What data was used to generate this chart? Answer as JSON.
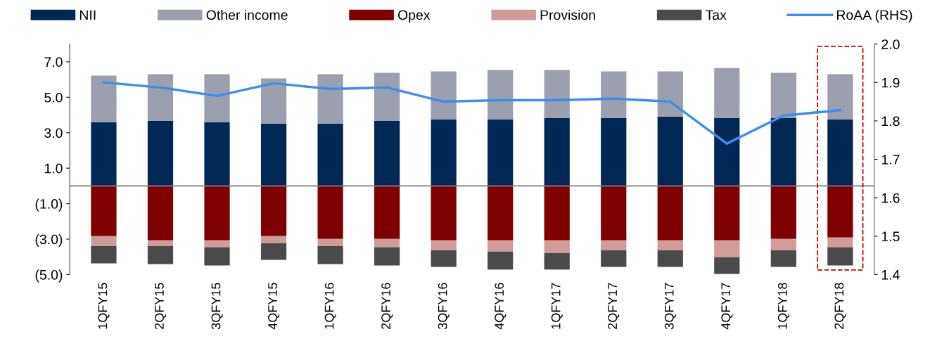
{
  "chart_data": {
    "type": "bar",
    "stacked": true,
    "categories": [
      "1QFY15",
      "2QFY15",
      "3QFY15",
      "4QFY15",
      "1QFY16",
      "2QFY16",
      "3QFY16",
      "4QFY16",
      "1QFY17",
      "2QFY17",
      "3QFY17",
      "4QFY17",
      "1QFY18",
      "2QFY18"
    ],
    "series": [
      {
        "name": "NII",
        "color": "#002855",
        "values": [
          3.58,
          3.66,
          3.58,
          3.5,
          3.5,
          3.66,
          3.74,
          3.74,
          3.82,
          3.82,
          3.9,
          3.82,
          3.82,
          3.74
        ]
      },
      {
        "name": "Other income",
        "color": "#9c9fad",
        "values": [
          2.64,
          2.64,
          2.72,
          2.56,
          2.8,
          2.72,
          2.72,
          2.8,
          2.72,
          2.64,
          2.56,
          2.83,
          2.56,
          2.56
        ]
      },
      {
        "name": "Opex",
        "color": "#7f0000",
        "values": [
          -2.83,
          -3.07,
          -3.07,
          -2.83,
          -2.99,
          -2.99,
          -3.07,
          -3.07,
          -3.07,
          -3.07,
          -3.07,
          -3.07,
          -2.99,
          -2.91
        ]
      },
      {
        "name": "Provision",
        "color": "#d09c9a",
        "values": [
          -0.56,
          -0.32,
          -0.39,
          -0.4,
          -0.4,
          -0.47,
          -0.55,
          -0.63,
          -0.71,
          -0.55,
          -0.55,
          -0.95,
          -0.63,
          -0.55
        ]
      },
      {
        "name": "Tax",
        "color": "#4a4a4a",
        "values": [
          -0.98,
          -1.02,
          -1.03,
          -0.94,
          -1.02,
          -1.03,
          -0.95,
          -1.02,
          -0.94,
          -0.95,
          -0.95,
          -0.94,
          -0.95,
          -1.03
        ]
      },
      {
        "name": "RoAA (RHS)",
        "type": "line",
        "axis": "y2",
        "color": "#3d8ef0",
        "values": [
          1.9,
          1.887,
          1.865,
          1.898,
          1.883,
          1.887,
          1.85,
          1.854,
          1.854,
          1.858,
          1.85,
          1.741,
          1.814,
          1.828
        ]
      }
    ],
    "ylim": [
      -5,
      8
    ],
    "yticks": [
      {
        "value": -5,
        "label": "(5.0)"
      },
      {
        "value": -3,
        "label": "(3.0)"
      },
      {
        "value": -1,
        "label": "(1.0)"
      },
      {
        "value": 1,
        "label": "1.0"
      },
      {
        "value": 3,
        "label": "3.0"
      },
      {
        "value": 5,
        "label": "5.0"
      },
      {
        "value": 7,
        "label": "7.0"
      }
    ],
    "y2lim": [
      1.4,
      2.0
    ],
    "y2ticks": [
      {
        "value": 1.4,
        "label": "1.4"
      },
      {
        "value": 1.5,
        "label": "1.5"
      },
      {
        "value": 1.6,
        "label": "1.6"
      },
      {
        "value": 1.7,
        "label": "1.7"
      },
      {
        "value": 1.8,
        "label": "1.8"
      },
      {
        "value": 1.9,
        "label": "1.9"
      },
      {
        "value": 2.0,
        "label": "2.0"
      }
    ],
    "legend": "top",
    "grid": false,
    "marker": "none",
    "line_style": "solid"
  }
}
